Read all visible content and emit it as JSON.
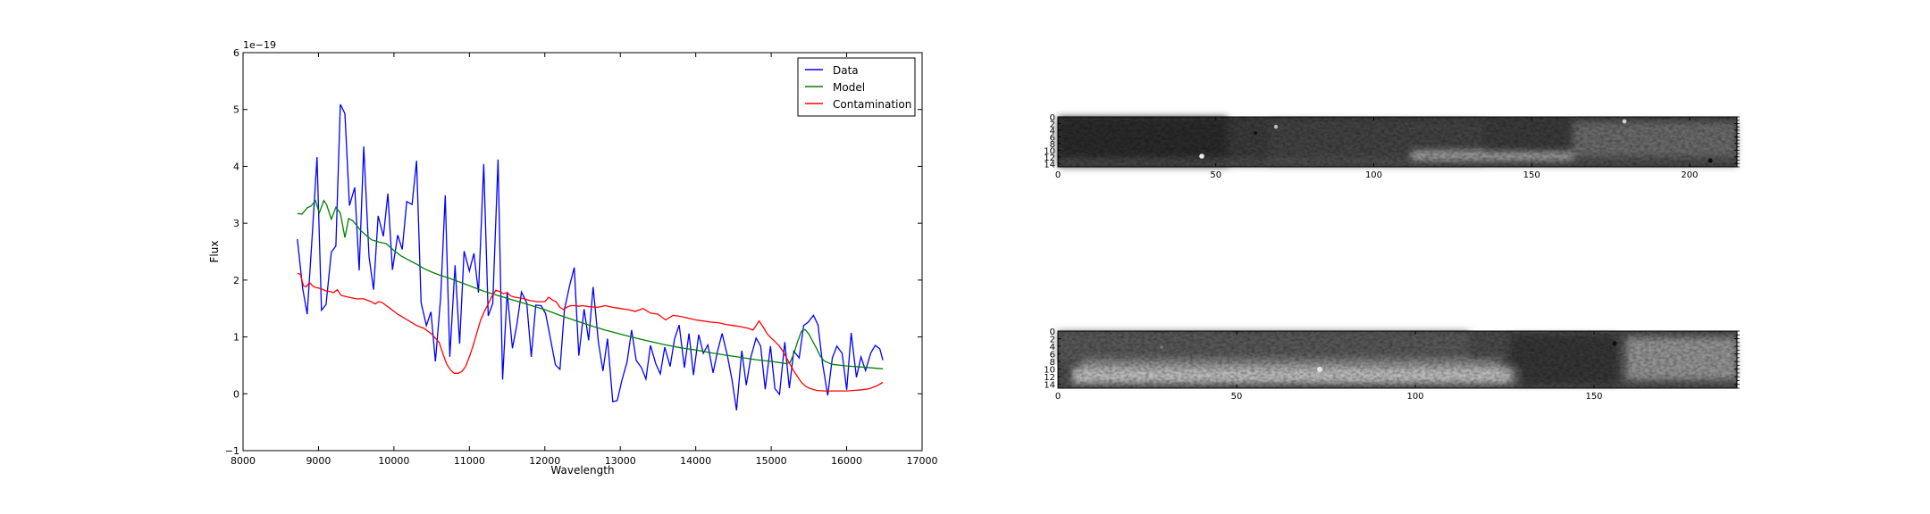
{
  "chart_data": [
    {
      "type": "line",
      "xlabel": "Wavelength",
      "ylabel": "Flux",
      "offset_label": "1e−19",
      "xlim": [
        8000,
        17000
      ],
      "ylim": [
        -1,
        6
      ],
      "xticks": [
        8000,
        9000,
        10000,
        11000,
        12000,
        13000,
        14000,
        15000,
        16000,
        17000
      ],
      "xtick_labels": [
        "8000",
        "9000",
        "10000",
        "11000",
        "12000",
        "13000",
        "14000",
        "15000",
        "16000",
        "17000"
      ],
      "yticks": [
        -1,
        0,
        1,
        2,
        3,
        4,
        5,
        6
      ],
      "ytick_labels": [
        "−1",
        "0",
        "1",
        "2",
        "3",
        "4",
        "5",
        "6"
      ],
      "legend_position": "top-right",
      "grid": false,
      "series": [
        {
          "name": "Data",
          "color": "#0000ff",
          "x": [
            8720,
            8790,
            8850,
            8920,
            8980,
            9040,
            9100,
            9170,
            9230,
            9290,
            9350,
            9410,
            9480,
            9540,
            9600,
            9670,
            9730,
            9790,
            9860,
            9920,
            9980,
            10050,
            10110,
            10170,
            10240,
            10300,
            10360,
            10430,
            10490,
            10550,
            10620,
            10680,
            10740,
            10810,
            10870,
            10930,
            11000,
            11060,
            11120,
            11190,
            11250,
            11310,
            11380,
            11440,
            11500,
            11570,
            11630,
            11690,
            11760,
            11820,
            11880,
            11950,
            12010,
            12070,
            12140,
            12200,
            12260,
            12330,
            12390,
            12450,
            12520,
            12580,
            12640,
            12710,
            12770,
            12830,
            12900,
            12960,
            13020,
            13090,
            13150,
            13210,
            13280,
            13340,
            13400,
            13470,
            13530,
            13590,
            13660,
            13720,
            13780,
            13850,
            13910,
            13970,
            14040,
            14100,
            14160,
            14230,
            14290,
            14350,
            14420,
            14480,
            14540,
            14610,
            14670,
            14730,
            14800,
            14860,
            14920,
            14990,
            15050,
            15110,
            15180,
            15240,
            15300,
            15370,
            15430,
            15490,
            15560,
            15620,
            15680,
            15750,
            15810,
            15870,
            15940,
            16000,
            16060,
            16130,
            16190,
            16250,
            16320,
            16380,
            16440,
            16480
          ],
          "y": [
            2.72,
            1.86,
            1.4,
            2.85,
            4.16,
            1.47,
            1.57,
            2.49,
            2.6,
            5.09,
            4.93,
            3.31,
            3.63,
            2.17,
            4.35,
            2.41,
            1.83,
            3.13,
            2.77,
            3.52,
            2.18,
            2.79,
            2.54,
            3.38,
            3.33,
            4.1,
            1.6,
            1.2,
            1.44,
            0.57,
            1.7,
            3.49,
            0.65,
            2.26,
            0.88,
            2.51,
            2.16,
            2.47,
            1.78,
            4.04,
            1.37,
            1.59,
            4.12,
            0.25,
            1.79,
            0.8,
            1.22,
            1.79,
            1.6,
            0.65,
            1.56,
            1.55,
            1.41,
            1.0,
            0.51,
            0.43,
            1.48,
            1.91,
            2.22,
            0.67,
            1.49,
            0.94,
            1.88,
            0.91,
            0.4,
            0.97,
            -0.14,
            -0.12,
            0.23,
            0.56,
            1.12,
            0.59,
            0.46,
            0.26,
            0.85,
            0.53,
            0.35,
            0.82,
            0.48,
            0.97,
            1.21,
            0.46,
            1.06,
            0.33,
            1.04,
            0.71,
            0.86,
            0.37,
            0.76,
            1.06,
            0.67,
            0.25,
            -0.29,
            0.76,
            0.15,
            0.64,
            0.98,
            0.84,
            0.08,
            0.84,
            0.09,
            -0.01,
            0.91,
            0.1,
            0.75,
            0.63,
            1.2,
            1.26,
            1.38,
            1.21,
            0.54,
            -0.03,
            0.63,
            0.84,
            0.71,
            0.07,
            1.07,
            0.29,
            0.65,
            0.41,
            0.72,
            0.85,
            0.79,
            0.59
          ]
        },
        {
          "name": "Model",
          "color": "#008000",
          "x": [
            8720,
            8780,
            8850,
            8900,
            8960,
            9010,
            9070,
            9110,
            9170,
            9230,
            9290,
            9350,
            9400,
            9450,
            9500,
            9560,
            9620,
            9700,
            9800,
            9900,
            10000,
            10100,
            10200,
            10300,
            10400,
            10500,
            10600,
            10700,
            10800,
            10900,
            11000,
            11100,
            11200,
            11300,
            11400,
            11500,
            11600,
            11700,
            11800,
            11900,
            12000,
            12200,
            12400,
            12600,
            12800,
            13000,
            13200,
            13400,
            13600,
            13800,
            14000,
            14200,
            14400,
            14600,
            14800,
            15000,
            15100,
            15200,
            15250,
            15300,
            15350,
            15400,
            15450,
            15500,
            15550,
            15600,
            15650,
            15700,
            15800,
            16000,
            16200,
            16480
          ],
          "y": [
            3.17,
            3.16,
            3.27,
            3.3,
            3.4,
            3.18,
            3.4,
            3.32,
            3.07,
            3.28,
            3.18,
            2.75,
            3.08,
            3.05,
            2.97,
            2.87,
            2.8,
            2.71,
            2.67,
            2.64,
            2.52,
            2.42,
            2.35,
            2.28,
            2.2,
            2.14,
            2.09,
            2.05,
            2.0,
            1.95,
            1.9,
            1.85,
            1.8,
            1.76,
            1.72,
            1.68,
            1.64,
            1.6,
            1.56,
            1.52,
            1.48,
            1.38,
            1.29,
            1.2,
            1.12,
            1.05,
            0.98,
            0.92,
            0.86,
            0.81,
            0.77,
            0.72,
            0.68,
            0.64,
            0.6,
            0.57,
            0.55,
            0.53,
            0.55,
            0.7,
            0.92,
            1.1,
            1.13,
            1.05,
            0.92,
            0.8,
            0.66,
            0.58,
            0.52,
            0.49,
            0.47,
            0.44
          ]
        },
        {
          "name": "Contamination",
          "color": "#ff0000",
          "x": [
            8720,
            8760,
            8800,
            8840,
            8880,
            8920,
            8960,
            9000,
            9050,
            9100,
            9150,
            9200,
            9250,
            9300,
            9400,
            9500,
            9600,
            9700,
            9750,
            9800,
            9850,
            9900,
            9950,
            10000,
            10050,
            10100,
            10200,
            10300,
            10400,
            10500,
            10600,
            10650,
            10700,
            10750,
            10800,
            10850,
            10900,
            10950,
            11000,
            11050,
            11100,
            11150,
            11200,
            11250,
            11300,
            11350,
            11400,
            11450,
            11500,
            11550,
            11600,
            11700,
            11800,
            11900,
            12000,
            12050,
            12100,
            12150,
            12200,
            12250,
            12300,
            12350,
            12400,
            12450,
            12500,
            12600,
            12700,
            12800,
            12900,
            13000,
            13100,
            13200,
            13300,
            13400,
            13500,
            13600,
            13700,
            13800,
            13900,
            14000,
            14100,
            14200,
            14300,
            14400,
            14500,
            14600,
            14700,
            14760,
            14800,
            14840,
            14900,
            14950,
            15000,
            15050,
            15100,
            15150,
            15200,
            15250,
            15300,
            15350,
            15400,
            15450,
            15500,
            15600,
            15700,
            15800,
            15900,
            16000,
            16100,
            16200,
            16300,
            16400,
            16480
          ],
          "y": [
            2.12,
            2.1,
            1.9,
            1.88,
            1.96,
            1.9,
            1.87,
            1.86,
            1.84,
            1.81,
            1.8,
            1.78,
            1.83,
            1.73,
            1.7,
            1.67,
            1.67,
            1.62,
            1.58,
            1.62,
            1.6,
            1.55,
            1.5,
            1.45,
            1.4,
            1.36,
            1.28,
            1.2,
            1.15,
            1.05,
            0.9,
            0.7,
            0.52,
            0.42,
            0.36,
            0.36,
            0.39,
            0.48,
            0.65,
            0.85,
            1.08,
            1.3,
            1.45,
            1.58,
            1.72,
            1.82,
            1.8,
            1.76,
            1.78,
            1.72,
            1.7,
            1.68,
            1.64,
            1.62,
            1.62,
            1.7,
            1.65,
            1.62,
            1.52,
            1.48,
            1.53,
            1.55,
            1.55,
            1.54,
            1.55,
            1.53,
            1.52,
            1.55,
            1.52,
            1.5,
            1.48,
            1.45,
            1.5,
            1.42,
            1.4,
            1.3,
            1.38,
            1.36,
            1.33,
            1.3,
            1.28,
            1.26,
            1.25,
            1.22,
            1.2,
            1.18,
            1.15,
            1.12,
            1.2,
            1.28,
            1.16,
            1.05,
            0.98,
            0.92,
            0.85,
            0.76,
            0.64,
            0.52,
            0.4,
            0.3,
            0.2,
            0.14,
            0.1,
            0.06,
            0.05,
            0.05,
            0.05,
            0.05,
            0.06,
            0.07,
            0.09,
            0.14,
            0.2
          ]
        }
      ]
    },
    {
      "type": "heatmap",
      "title": "",
      "colormap": "gray",
      "xlim": [
        0,
        215
      ],
      "ylim": [
        15,
        0
      ],
      "xticks": [
        0,
        50,
        100,
        150,
        200
      ],
      "xtick_labels": [
        "0",
        "50",
        "100",
        "150",
        "200"
      ],
      "yticks": [
        0,
        2,
        4,
        6,
        8,
        10,
        12,
        14
      ],
      "ytick_labels": [
        "0",
        "2",
        "4",
        "6",
        "8",
        "10",
        "12",
        "14"
      ]
    },
    {
      "type": "heatmap",
      "title": "",
      "colormap": "gray",
      "xlim": [
        0,
        190
      ],
      "ylim": [
        15,
        0
      ],
      "xticks": [
        0,
        50,
        100,
        150
      ],
      "xtick_labels": [
        "0",
        "50",
        "100",
        "150"
      ],
      "yticks": [
        0,
        2,
        4,
        6,
        8,
        10,
        12,
        14
      ],
      "ytick_labels": [
        "0",
        "2",
        "4",
        "6",
        "8",
        "10",
        "12",
        "14"
      ]
    }
  ]
}
